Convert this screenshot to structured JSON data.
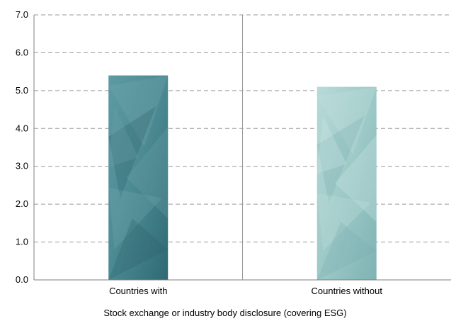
{
  "chart_data": {
    "type": "bar",
    "categories": [
      "Countries with",
      "Countries without"
    ],
    "values": [
      5.4,
      5.1
    ],
    "xlabel": "Stock exchange or industry body disclosure (covering ESG)",
    "ylabel": "",
    "ylim": [
      0,
      7
    ],
    "yticks": [
      "0.0",
      "1.0",
      "2.0",
      "3.0",
      "4.0",
      "5.0",
      "6.0",
      "7.0"
    ],
    "grid": true,
    "legend": "none",
    "colors": {
      "bar_with": "#3f7f88",
      "bar_with_light": "#78aab0",
      "bar_without": "#8fbfbf",
      "bar_without_light": "#c6e2df",
      "grid": "#9a9a9a",
      "axis": "#7f7f7f",
      "divider": "#9a9a9a"
    }
  }
}
